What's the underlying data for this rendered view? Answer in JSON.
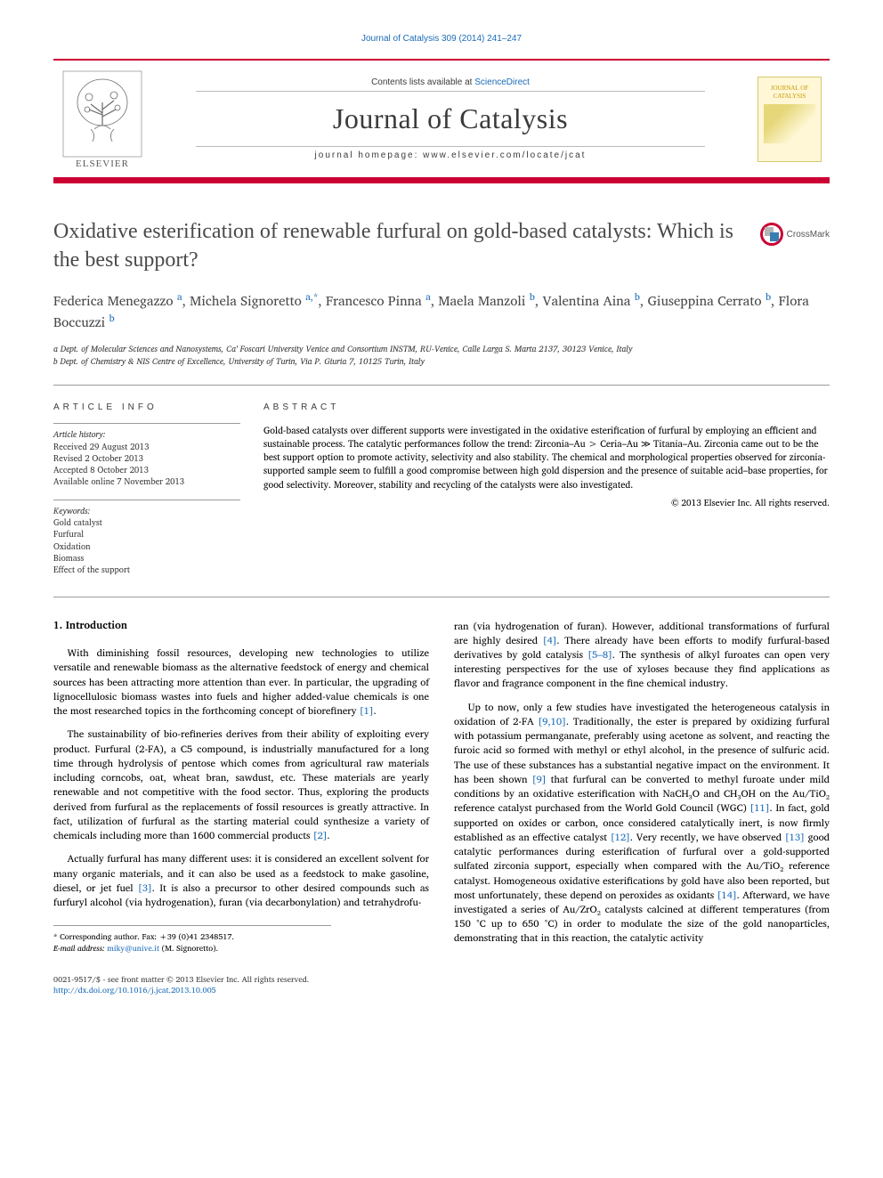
{
  "top_link": "Journal of Catalysis 309 (2014) 241–247",
  "top_link_href": "#",
  "header": {
    "contents_prefix": "Contents lists available at ",
    "contents_link": "ScienceDirect",
    "journal_name": "Journal of Catalysis",
    "homepage_prefix": "journal homepage: ",
    "homepage_url": "www.elsevier.com/locate/jcat",
    "publisher": "ELSEVIER",
    "cover_line1": "JOURNAL OF",
    "cover_line2": "CATALYSIS"
  },
  "article": {
    "title": "Oxidative esterification of renewable furfural on gold-based catalysts: Which is the best support?",
    "crossmark_label": "CrossMark",
    "authors_html": "Federica Menegazzo <a href='#'>a</a>, Michela Signoretto <a href='#'>a,*</a>, Francesco Pinna <a href='#'>a</a>, Maela Manzoli <a href='#'>b</a>, Valentina Aina <a href='#'>b</a>, Giuseppina Cerrato <a href='#'>b</a>, Flora Boccuzzi <a href='#'>b</a>",
    "affiliations": [
      "a Dept. of Molecular Sciences and Nanosystems, Ca' Foscari University Venice and Consortium INSTM, RU-Venice, Calle Larga S. Marta 2137, 30123 Venice, Italy",
      "b Dept. of Chemistry & NIS Centre of Excellence, University of Turin, Via P. Giuria 7, 10125 Turin, Italy"
    ]
  },
  "info": {
    "heading": "ARTICLE INFO",
    "history_label": "Article history:",
    "history": [
      "Received 29 August 2013",
      "Revised 2 October 2013",
      "Accepted 8 October 2013",
      "Available online 7 November 2013"
    ],
    "keywords_label": "Keywords:",
    "keywords": [
      "Gold catalyst",
      "Furfural",
      "Oxidation",
      "Biomass",
      "Effect of the support"
    ]
  },
  "abstract": {
    "heading": "ABSTRACT",
    "text": "Gold-based catalysts over different supports were investigated in the oxidative esterification of furfural by employing an efficient and sustainable process. The catalytic performances follow the trend: Zirconia–Au > Ceria–Au ≫ Titania–Au. Zirconia came out to be the best support option to promote activity, selectivity and also stability. The chemical and morphological properties observed for zirconia-supported sample seem to fulfill a good compromise between high gold dispersion and the presence of suitable acid–base properties, for good selectivity. Moreover, stability and recycling of the catalysts were also investigated.",
    "copyright": "© 2013 Elsevier Inc. All rights reserved."
  },
  "body": {
    "section_heading": "1. Introduction",
    "left_paragraphs": [
      "With diminishing fossil resources, developing new technologies to utilize versatile and renewable biomass as the alternative feedstock of energy and chemical sources has been attracting more attention than ever. In particular, the upgrading of lignocellulosic biomass wastes into fuels and higher added-value chemicals is one the most researched topics in the forthcoming concept of biorefinery <a class='cite' href='#'>[1]</a>.",
      "The sustainability of bio-refineries derives from their ability of exploiting every product. Furfural (2-FA), a C5 compound, is industrially manufactured for a long time through hydrolysis of pentose which comes from agricultural raw materials including corncobs, oat, wheat bran, sawdust, etc. These materials are yearly renewable and not competitive with the food sector. Thus, exploring the products derived from furfural as the replacements of fossil resources is greatly attractive. In fact, utilization of furfural as the starting material could synthesize a variety of chemicals including more than 1600 commercial products <a class='cite' href='#'>[2]</a>.",
      "Actually furfural has many different uses: it is considered an excellent solvent for many organic materials, and it can also be used as a feedstock to make gasoline, diesel, or jet fuel <a class='cite' href='#'>[3]</a>. It is also a precursor to other desired compounds such as furfuryl alcohol (via hydrogenation), furan (via decarbonylation) and tetrahydrofu-"
    ],
    "right_first_fragment": "ran (via hydrogenation of furan). However, additional transformations of furfural are highly desired <a class='cite' href='#'>[4]</a>. There already have been efforts to modify furfural-based derivatives by gold catalysis <a class='cite' href='#'>[5–8]</a>. The synthesis of alkyl furoates can open very interesting perspectives for the use of xyloses because they find applications as flavor and fragrance component in the fine chemical industry.",
    "right_second": "Up to now, only a few studies have investigated the heterogeneous catalysis in oxidation of 2-FA <a class='cite' href='#'>[9,10]</a>. Traditionally, the ester is prepared by oxidizing furfural with potassium permanganate, preferably using acetone as solvent, and reacting the furoic acid so formed with methyl or ethyl alcohol, in the presence of sulfuric acid. The use of these substances has a substantial negative impact on the environment. It has been shown <a class='cite' href='#'>[9]</a> that furfural can be converted to methyl furoate under mild conditions by an oxidative esterification with NaCH₃O and CH₃OH on the Au/TiO₂ reference catalyst purchased from the World Gold Council (WGC) <a class='cite' href='#'>[11]</a>. In fact, gold supported on oxides or carbon, once considered catalytically inert, is now firmly established as an effective catalyst <a class='cite' href='#'>[12]</a>. Very recently, we have observed <a class='cite' href='#'>[13]</a> good catalytic performances during esterification of furfural over a gold-supported sulfated zirconia support, especially when compared with the Au/TiO₂ reference catalyst. Homogeneous oxidative esterifications by gold have also been reported, but most unfortunately, these depend on peroxides as oxidants <a class='cite' href='#'>[14]</a>. Afterward, we have investigated a series of Au/ZrO₂ catalysts calcined at different temperatures (from 150 °C up to 650 °C) in order to modulate the size of the gold nanoparticles, demonstrating that in this reaction, the catalytic activity"
  },
  "footnote": {
    "corr": "* Corresponding author. Fax: +39 (0)41 2348517.",
    "email_label": "E-mail address: ",
    "email": "miky@unive.it",
    "email_suffix": " (M. Signoretto)."
  },
  "footer": {
    "line1": "0021-9517/$ - see front matter © 2013 Elsevier Inc. All rights reserved.",
    "doi": "http://dx.doi.org/10.1016/j.jcat.2013.10.005"
  },
  "colors": {
    "brand_red": "#cc0033",
    "link_blue": "#1a6bb8",
    "text_gray": "#3b3b3b",
    "cover_bg": "#fff7d6",
    "cover_text": "#c49a00"
  },
  "typography": {
    "title_fontsize": 24,
    "body_fontsize": 11.2,
    "abstract_fontsize": 10.5,
    "info_fontsize": 9.5,
    "footer_fontsize": 9
  }
}
